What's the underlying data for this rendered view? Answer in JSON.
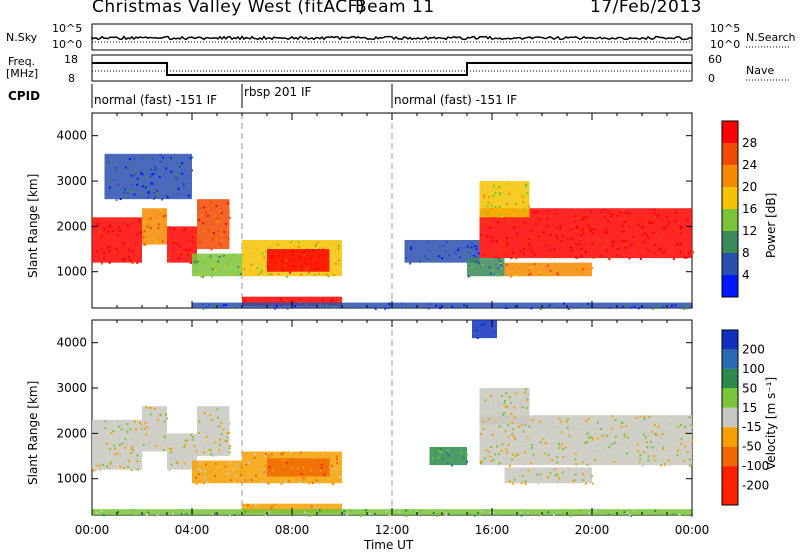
{
  "header": {
    "station": "Christmas Valley West (fitACF)",
    "beam": "Beam 11",
    "date": "17/Feb/2013"
  },
  "top_panels": {
    "nsky_label": "N.Sky",
    "nsky_ticks": [
      "10^5",
      "10^0"
    ],
    "nsearch_label": "N.Search",
    "freq_label_1": "Freq.",
    "freq_label_2": "[MHz]",
    "freq_ticks": [
      "18",
      "8"
    ],
    "nave_label": "Nave",
    "nave_ticks": [
      "60",
      "0"
    ],
    "cpid_label": "CPID",
    "modes": [
      "normal (fast) -151 IF",
      "rbsp 201 IF",
      "normal (fast) -151 IF"
    ]
  },
  "colors": {
    "power": [
      "#0018ff",
      "#2a4fb0",
      "#3b8a5a",
      "#7bc43a",
      "#f5c400",
      "#f58a00",
      "#f04a00",
      "#ff0000"
    ],
    "velocity": [
      "#1030c0",
      "#2a6ab0",
      "#2a8a4a",
      "#78c43a",
      "#c8c8c0",
      "#f5a000",
      "#f06800",
      "#ff2000"
    ],
    "ground": "#c8c8c0"
  },
  "chart_data": [
    {
      "type": "heatmap",
      "name": "power",
      "xlabel": "",
      "ylabel": "Slant Range [km]",
      "xlim": [
        0,
        24
      ],
      "ylim": [
        200,
        4500
      ],
      "yticks": [
        "4000",
        "3000",
        "2000",
        "1000"
      ],
      "colorbar_label": "Power [dB]",
      "colorbar_ticks": [
        "28",
        "24",
        "20",
        "16",
        "12",
        "8",
        "4"
      ],
      "regions": [
        {
          "x0": 0.0,
          "x1": 2.0,
          "y0": 1200,
          "y1": 2200,
          "level": 7
        },
        {
          "x0": 2.0,
          "x1": 3.0,
          "y0": 1600,
          "y1": 2400,
          "level": 5
        },
        {
          "x0": 3.0,
          "x1": 4.2,
          "y0": 1200,
          "y1": 2000,
          "level": 7
        },
        {
          "x0": 4.2,
          "x1": 5.5,
          "y0": 1500,
          "y1": 2600,
          "level": 6
        },
        {
          "x0": 4.0,
          "x1": 6.0,
          "y0": 900,
          "y1": 1400,
          "level": 3
        },
        {
          "x0": 6.0,
          "x1": 10.0,
          "y0": 900,
          "y1": 1700,
          "level": 4
        },
        {
          "x0": 7.0,
          "x1": 9.5,
          "y0": 1000,
          "y1": 1500,
          "level": 7
        },
        {
          "x0": 6.0,
          "x1": 10.0,
          "y0": 250,
          "y1": 450,
          "level": 7
        },
        {
          "x0": 4.0,
          "x1": 24.0,
          "y0": 200,
          "y1": 320,
          "level": 1
        },
        {
          "x0": 12.5,
          "x1": 15.5,
          "y0": 1200,
          "y1": 1700,
          "level": 1
        },
        {
          "x0": 15.5,
          "x1": 24.0,
          "y0": 1300,
          "y1": 2400,
          "level": 7
        },
        {
          "x0": 15.5,
          "x1": 17.5,
          "y0": 2200,
          "y1": 3000,
          "level": 4
        },
        {
          "x0": 16.5,
          "x1": 20.0,
          "y0": 900,
          "y1": 1200,
          "level": 5
        },
        {
          "x0": 15.0,
          "x1": 16.5,
          "y0": 900,
          "y1": 1300,
          "level": 2
        },
        {
          "x0": 0.5,
          "x1": 4.0,
          "y0": 2600,
          "y1": 3600,
          "level": 1
        }
      ]
    },
    {
      "type": "heatmap",
      "name": "velocity",
      "xlabel": "Time UT",
      "ylabel": "Slant Range [km]",
      "xlim": [
        0,
        24
      ],
      "ylim": [
        200,
        4500
      ],
      "xticks": [
        "00:00",
        "04:00",
        "08:00",
        "12:00",
        "16:00",
        "20:00",
        "00:00"
      ],
      "yticks": [
        "4000",
        "3000",
        "2000",
        "1000"
      ],
      "colorbar_label": "Velocity [m s⁻¹]",
      "colorbar_ticks": [
        "200",
        "100",
        "50",
        "15",
        "-15",
        "-50",
        "-100",
        "-200"
      ],
      "regions": [
        {
          "x0": 0.0,
          "x1": 2.0,
          "y0": 1200,
          "y1": 2300,
          "level": 4
        },
        {
          "x0": 2.0,
          "x1": 3.0,
          "y0": 1600,
          "y1": 2600,
          "level": 4
        },
        {
          "x0": 3.0,
          "x1": 4.2,
          "y0": 1200,
          "y1": 2000,
          "level": 4
        },
        {
          "x0": 4.2,
          "x1": 5.5,
          "y0": 1500,
          "y1": 2600,
          "level": 4
        },
        {
          "x0": 4.0,
          "x1": 6.0,
          "y0": 900,
          "y1": 1400,
          "level": 5
        },
        {
          "x0": 6.0,
          "x1": 10.0,
          "y0": 900,
          "y1": 1600,
          "level": 5
        },
        {
          "x0": 7.0,
          "x1": 9.5,
          "y0": 1050,
          "y1": 1450,
          "level": 6
        },
        {
          "x0": 6.0,
          "x1": 10.0,
          "y0": 250,
          "y1": 450,
          "level": 5
        },
        {
          "x0": 0.0,
          "x1": 24.0,
          "y0": 200,
          "y1": 330,
          "level": 3
        },
        {
          "x0": 15.5,
          "x1": 24.0,
          "y0": 1300,
          "y1": 2400,
          "level": 4
        },
        {
          "x0": 15.5,
          "x1": 17.5,
          "y0": 2200,
          "y1": 3000,
          "level": 4
        },
        {
          "x0": 16.5,
          "x1": 20.0,
          "y0": 900,
          "y1": 1250,
          "level": 4
        },
        {
          "x0": 15.2,
          "x1": 16.2,
          "y0": 4100,
          "y1": 4500,
          "level": 0
        },
        {
          "x0": 13.5,
          "x1": 15.0,
          "y0": 1300,
          "y1": 1700,
          "level": 2
        }
      ]
    }
  ]
}
